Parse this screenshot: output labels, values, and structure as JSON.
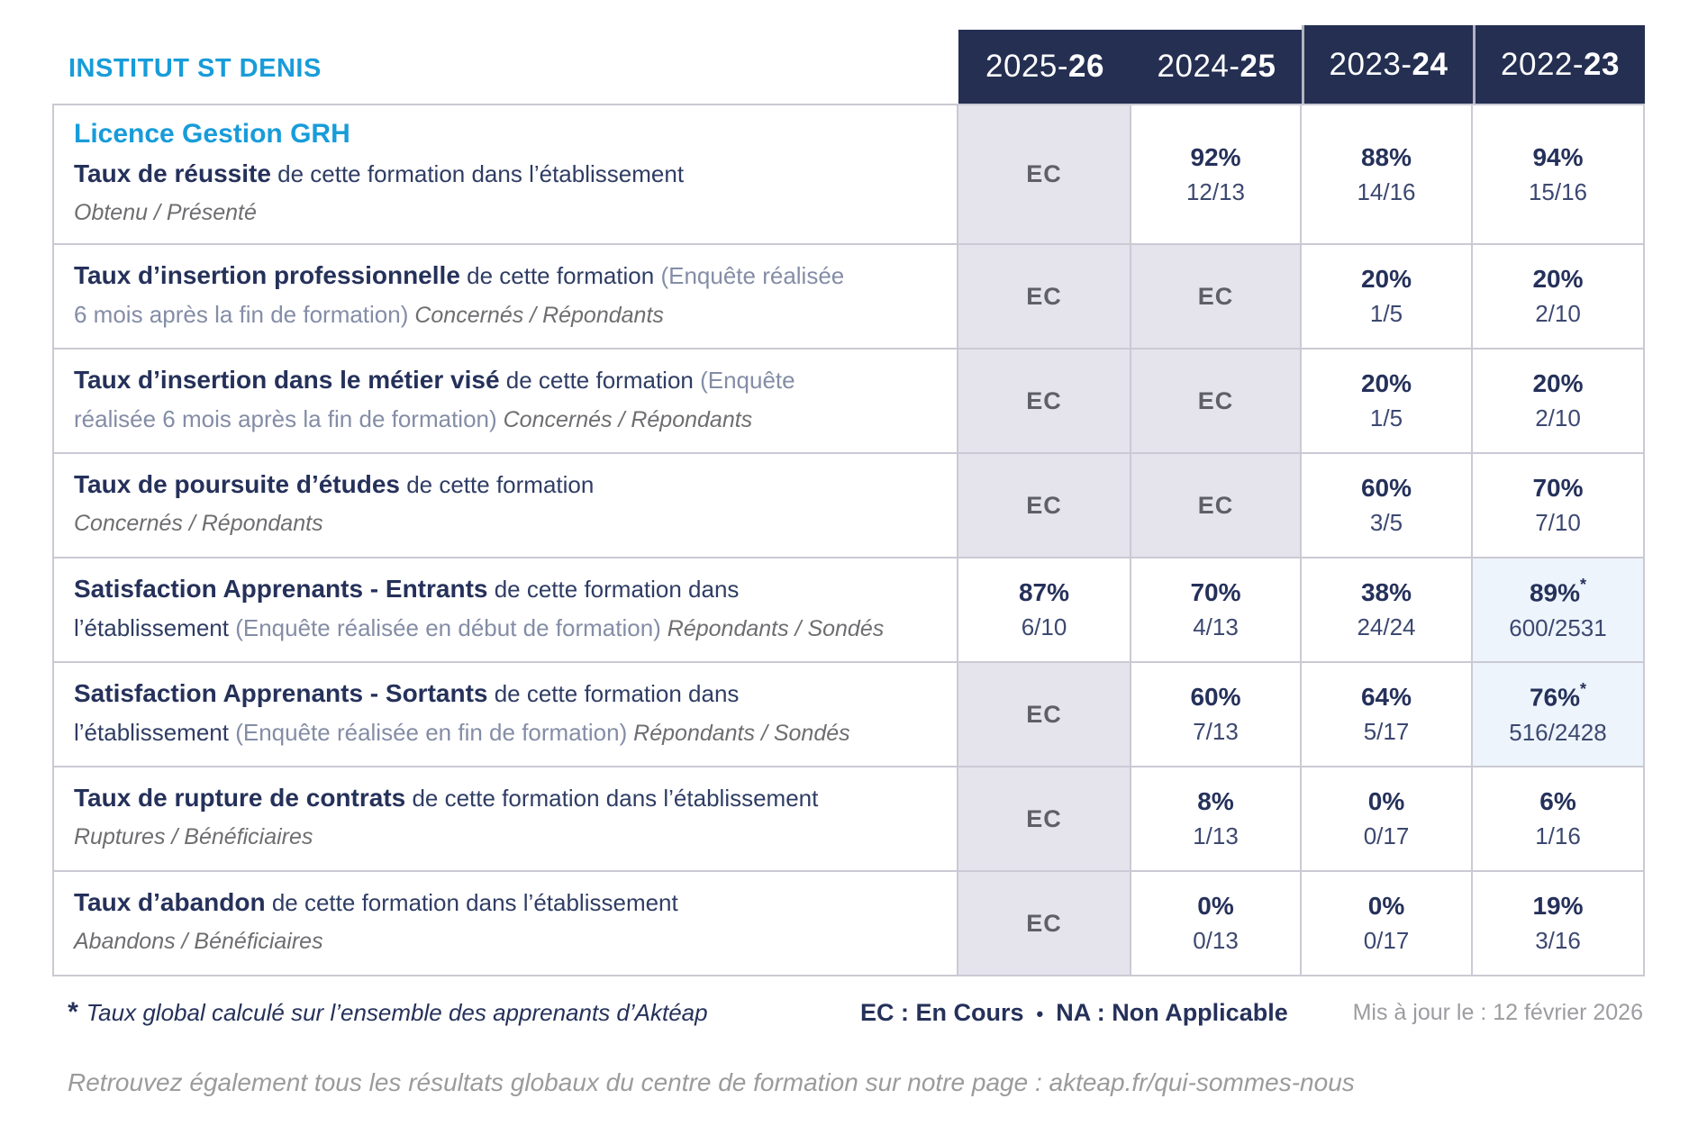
{
  "institute": "INSTITUT ST DENIS",
  "colors": {
    "accent_cyan": "#189cd9",
    "header_navy": "#242f52",
    "value_navy": "#25315a",
    "ec_cell_bg": "#e5e4ec",
    "highlight_cell_bg": "#edf4fb",
    "border_gray": "#cacad4"
  },
  "header": {
    "years": [
      {
        "prefix": "2025-",
        "suffix": "26",
        "tall": false
      },
      {
        "prefix": "2024-",
        "suffix": "25",
        "tall": false
      },
      {
        "prefix": "2023-",
        "suffix": "24",
        "tall": true
      },
      {
        "prefix": "2022-",
        "suffix": "23",
        "tall": true
      }
    ]
  },
  "rows": [
    {
      "name": "taux-de-reussite",
      "lines": [
        [
          {
            "t": "course",
            "text": "Licence Gestion GRH"
          }
        ],
        [
          {
            "t": "bold",
            "text": "Taux de réussite"
          },
          {
            "t": "normal",
            "text": " de cette formation dans l’établissement"
          }
        ],
        [
          {
            "t": "italic",
            "text": "Obtenu / Présenté"
          }
        ]
      ],
      "cells": [
        {
          "ec": true
        },
        {
          "pct": "92%",
          "frac": "12/13"
        },
        {
          "pct": "88%",
          "frac": "14/16"
        },
        {
          "pct": "94%",
          "frac": "15/16"
        }
      ]
    },
    {
      "name": "taux-insertion-professionnelle",
      "lines": [
        [
          {
            "t": "bold",
            "text": "Taux d’insertion professionnelle"
          },
          {
            "t": "normal",
            "text": " de cette formation "
          },
          {
            "t": "paren",
            "text": "(Enquête réalisée"
          }
        ],
        [
          {
            "t": "paren",
            "text": "6 mois après la fin de formation)"
          },
          {
            "t": "italic",
            "text": " Concernés / Répondants"
          }
        ]
      ],
      "cells": [
        {
          "ec": true
        },
        {
          "ec": true
        },
        {
          "pct": "20%",
          "frac": "1/5"
        },
        {
          "pct": "20%",
          "frac": "2/10"
        }
      ]
    },
    {
      "name": "taux-insertion-metier-vise",
      "lines": [
        [
          {
            "t": "bold",
            "text": "Taux d’insertion dans le métier visé"
          },
          {
            "t": "normal",
            "text": " de cette formation "
          },
          {
            "t": "paren",
            "text": "(Enquête"
          }
        ],
        [
          {
            "t": "paren",
            "text": "réalisée 6 mois après la fin de formation)"
          },
          {
            "t": "italic",
            "text": " Concernés / Répondants"
          }
        ]
      ],
      "cells": [
        {
          "ec": true
        },
        {
          "ec": true
        },
        {
          "pct": "20%",
          "frac": "1/5"
        },
        {
          "pct": "20%",
          "frac": "2/10"
        }
      ]
    },
    {
      "name": "taux-poursuite-etudes",
      "lines": [
        [
          {
            "t": "bold",
            "text": "Taux de poursuite d’études"
          },
          {
            "t": "normal",
            "text": " de cette formation"
          }
        ],
        [
          {
            "t": "italic",
            "text": "Concernés / Répondants"
          }
        ]
      ],
      "cells": [
        {
          "ec": true
        },
        {
          "ec": true
        },
        {
          "pct": "60%",
          "frac": "3/5"
        },
        {
          "pct": "70%",
          "frac": "7/10"
        }
      ]
    },
    {
      "name": "satisfaction-apprenants-entrants",
      "lines": [
        [
          {
            "t": "bold",
            "text": "Satisfaction Apprenants - Entrants"
          },
          {
            "t": "normal",
            "text": " de cette formation dans"
          }
        ],
        [
          {
            "t": "normal",
            "text": "l’établissement "
          },
          {
            "t": "paren",
            "text": "(Enquête réalisée en début de formation)"
          },
          {
            "t": "italic",
            "text": " Répondants / Sondés"
          }
        ]
      ],
      "cells": [
        {
          "pct": "87%",
          "frac": "6/10"
        },
        {
          "pct": "70%",
          "frac": "4/13"
        },
        {
          "pct": "38%",
          "frac": "24/24"
        },
        {
          "pct": "89%",
          "star": "*",
          "frac": "600/2531",
          "highlight": true
        }
      ]
    },
    {
      "name": "satisfaction-apprenants-sortants",
      "lines": [
        [
          {
            "t": "bold",
            "text": "Satisfaction Apprenants - Sortants"
          },
          {
            "t": "normal",
            "text": " de cette formation dans"
          }
        ],
        [
          {
            "t": "normal",
            "text": "l’établissement "
          },
          {
            "t": "paren",
            "text": "(Enquête réalisée en fin de formation)"
          },
          {
            "t": "italic",
            "text": " Répondants / Sondés"
          }
        ]
      ],
      "cells": [
        {
          "ec": true
        },
        {
          "pct": "60%",
          "frac": "7/13"
        },
        {
          "pct": "64%",
          "frac": "5/17"
        },
        {
          "pct": "76%",
          "star": "*",
          "frac": "516/2428",
          "highlight": true
        }
      ]
    },
    {
      "name": "taux-rupture-contrats",
      "lines": [
        [
          {
            "t": "bold",
            "text": "Taux de rupture de contrats"
          },
          {
            "t": "normal",
            "text": " de cette formation dans l’établissement"
          }
        ],
        [
          {
            "t": "italic",
            "text": "Ruptures / Bénéficiaires"
          }
        ]
      ],
      "cells": [
        {
          "ec": true
        },
        {
          "pct": "8%",
          "frac": "1/13"
        },
        {
          "pct": "0%",
          "frac": "0/17"
        },
        {
          "pct": "6%",
          "frac": "1/16"
        }
      ]
    },
    {
      "name": "taux-abandon",
      "lines": [
        [
          {
            "t": "bold",
            "text": "Taux d’abandon"
          },
          {
            "t": "normal",
            "text": " de cette formation dans l’établissement"
          }
        ],
        [
          {
            "t": "italic",
            "text": "Abandons / Bénéficiaires"
          }
        ]
      ],
      "cells": [
        {
          "ec": true
        },
        {
          "pct": "0%",
          "frac": "0/13"
        },
        {
          "pct": "0%",
          "frac": "0/17"
        },
        {
          "pct": "19%",
          "frac": "3/16"
        }
      ]
    }
  ],
  "ec_label": "EC",
  "footer": {
    "star": "*",
    "note": "Taux global calculé sur l’ensemble des apprenants d’Aktéap",
    "legend_ec": "EC : En Cours",
    "legend_sep": "•",
    "legend_na": "NA : Non Applicable",
    "updated": "Mis à jour le : 12 février 2026",
    "bottom": "Retrouvez également tous les résultats globaux du centre de formation sur notre page : akteap.fr/qui-sommes-nous"
  }
}
